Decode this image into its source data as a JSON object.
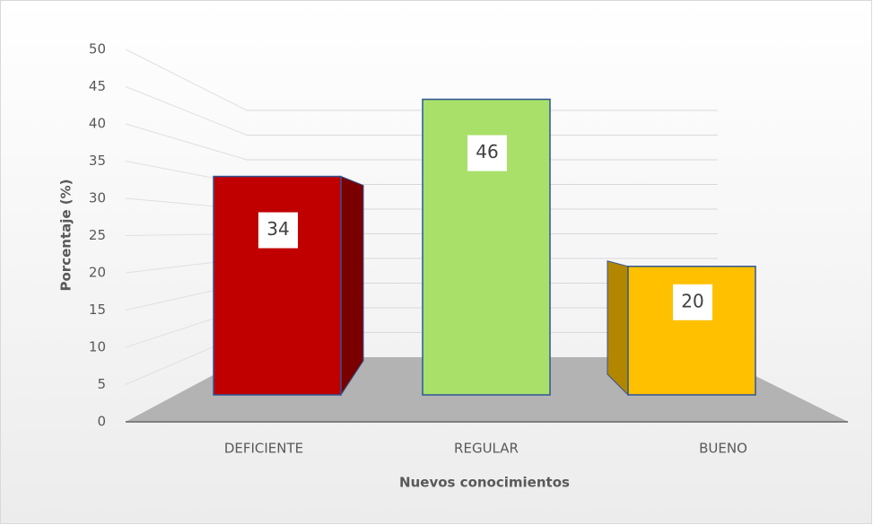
{
  "chart_data": {
    "type": "bar3d",
    "x_label": "Nuevos conocimientos",
    "y_label": "Porcentaje (%)",
    "categories": [
      "DEFICIENTE",
      "REGULAR",
      "BUENO"
    ],
    "values": [
      34,
      46,
      20
    ],
    "colors": [
      "#c00000",
      "#a9e06a",
      "#ffc000"
    ],
    "ylim": [
      0,
      50
    ],
    "yticks": [
      0,
      5,
      10,
      15,
      20,
      25,
      30,
      35,
      40,
      45,
      50
    ],
    "grid": true
  }
}
